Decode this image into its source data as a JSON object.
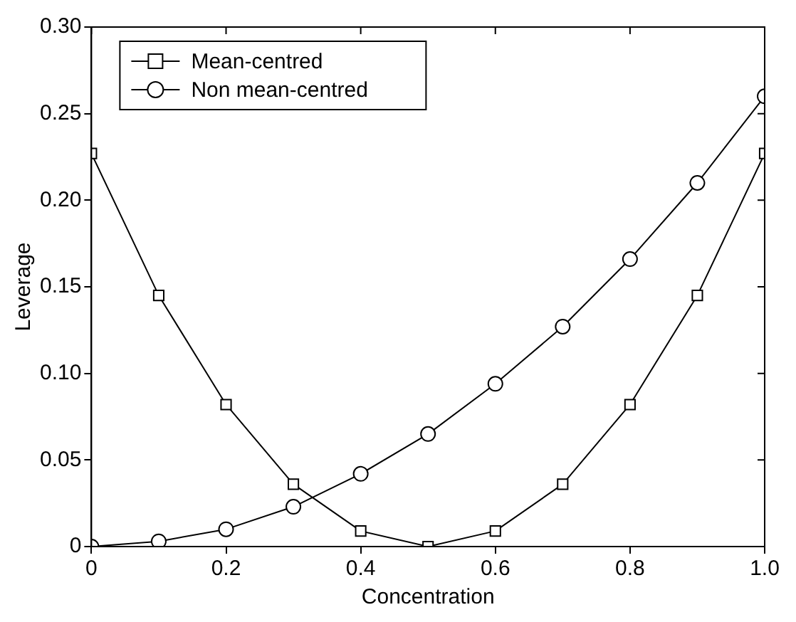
{
  "chart_data": {
    "type": "line",
    "xlabel": "Concentration",
    "ylabel": "Leverage",
    "x": [
      0,
      0.1,
      0.2,
      0.3,
      0.4,
      0.5,
      0.6,
      0.7,
      0.8,
      0.9,
      1.0
    ],
    "series": [
      {
        "name": "Mean-centred",
        "color": "#000000",
        "marker": "square",
        "values": [
          0.227,
          0.145,
          0.082,
          0.036,
          0.009,
          0,
          0.009,
          0.036,
          0.082,
          0.145,
          0.227
        ]
      },
      {
        "name": "Non mean-centred",
        "color": "#000000",
        "marker": "circle",
        "values": [
          0,
          0.003,
          0.01,
          0.023,
          0.042,
          0.065,
          0.094,
          0.127,
          0.166,
          0.21,
          0.26
        ]
      }
    ],
    "xlim": [
      0,
      1.0
    ],
    "xticks": [
      0,
      0.2,
      0.4,
      0.6,
      0.8,
      {
        "value": 1,
        "label": "1.0"
      }
    ],
    "ylim": [
      0,
      0.3
    ],
    "yticks": [
      0,
      0.05,
      {
        "value": 0.1,
        "label": "0.10"
      },
      0.15,
      {
        "value": 0.2,
        "label": "0.20"
      },
      0.25,
      {
        "value": 0.3,
        "label": "0.30"
      }
    ],
    "grid": false,
    "legend": "top left",
    "line_style": "solid"
  }
}
